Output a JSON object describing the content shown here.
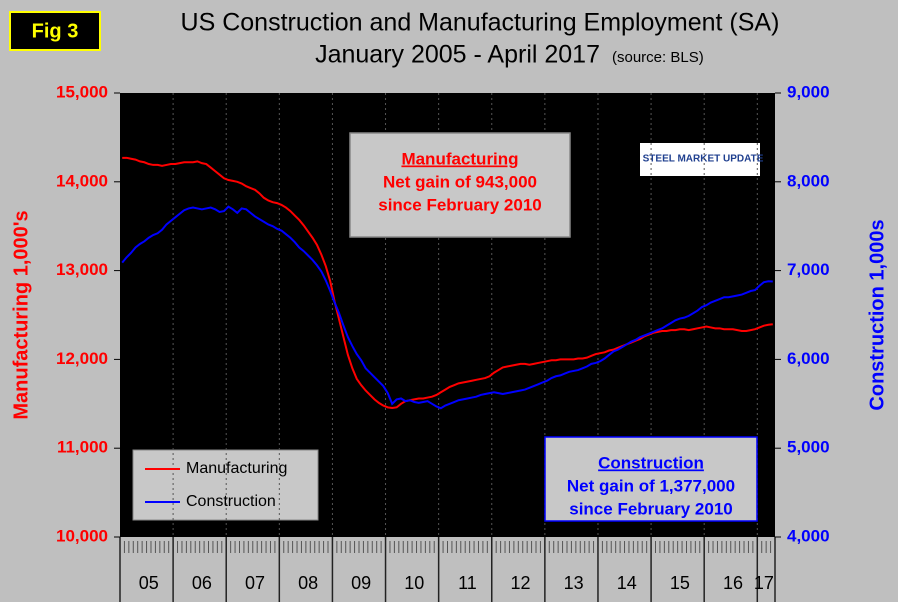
{
  "chart_data": {
    "type": "line",
    "figure_label": "Fig 3",
    "title": "US Construction and Manufacturing Employment (SA)",
    "subtitle": "January 2005 - April 2017",
    "source": "(source: BLS)",
    "logo": "STEEL MARKET UPDATE",
    "y_label": "Manufacturing  1,000's",
    "y2_label": "Construction 1,000s",
    "categories": [
      null,
      null,
      null,
      null,
      null,
      null,
      "05",
      null,
      null,
      null,
      null,
      null,
      null,
      null,
      null,
      null,
      null,
      null,
      "06",
      null,
      null,
      null,
      null,
      null,
      null,
      null,
      null,
      null,
      null,
      null,
      "07",
      null,
      null,
      null,
      null,
      null,
      null,
      null,
      null,
      null,
      null,
      null,
      "08",
      null,
      null,
      null,
      null,
      null,
      null,
      null,
      null,
      null,
      null,
      null,
      "09",
      null,
      null,
      null,
      null,
      null,
      null,
      null,
      null,
      null,
      null,
      null,
      "10",
      null,
      null,
      null,
      null,
      null,
      null,
      null,
      null,
      null,
      null,
      null,
      "11",
      null,
      null,
      null,
      null,
      null,
      null,
      null,
      null,
      null,
      null,
      null,
      "12",
      null,
      null,
      null,
      null,
      null,
      null,
      null,
      null,
      null,
      null,
      null,
      "13",
      null,
      null,
      null,
      null,
      null,
      null,
      null,
      null,
      null,
      null,
      null,
      "14",
      null,
      null,
      null,
      null,
      null,
      null,
      null,
      null,
      null,
      null,
      null,
      "15",
      null,
      null,
      null,
      null,
      null,
      null,
      null,
      null,
      null,
      null,
      null,
      "16",
      null,
      null,
      null,
      null,
      null,
      null,
      "17",
      null,
      null
    ],
    "series": [
      {
        "name": "Manufacturing",
        "color": "#ff0000",
        "values": [
          14270,
          14270,
          14260,
          14250,
          14230,
          14220,
          14200,
          14190,
          14190,
          14180,
          14190,
          14200,
          14200,
          14210,
          14220,
          14220,
          14220,
          14230,
          14210,
          14200,
          14160,
          14120,
          14080,
          14040,
          14020,
          14010,
          14000,
          13980,
          13950,
          13930,
          13910,
          13870,
          13820,
          13790,
          13770,
          13760,
          13740,
          13710,
          13670,
          13620,
          13570,
          13510,
          13440,
          13370,
          13290,
          13180,
          13050,
          12880,
          12650,
          12450,
          12250,
          12050,
          11900,
          11780,
          11710,
          11650,
          11600,
          11550,
          11510,
          11480,
          11460,
          11453,
          11460,
          11500,
          11530,
          11540,
          11550,
          11560,
          11560,
          11570,
          11580,
          11600,
          11630,
          11660,
          11690,
          11710,
          11730,
          11740,
          11750,
          11760,
          11770,
          11780,
          11790,
          11810,
          11850,
          11880,
          11910,
          11920,
          11930,
          11940,
          11950,
          11950,
          11940,
          11950,
          11960,
          11970,
          11980,
          11990,
          11990,
          12000,
          12000,
          12000,
          12000,
          12010,
          12010,
          12020,
          12040,
          12060,
          12070,
          12080,
          12100,
          12110,
          12130,
          12150,
          12170,
          12190,
          12210,
          12230,
          12260,
          12280,
          12300,
          12310,
          12320,
          12320,
          12330,
          12330,
          12340,
          12340,
          12330,
          12340,
          12350,
          12360,
          12370,
          12360,
          12350,
          12350,
          12340,
          12340,
          12340,
          12330,
          12320,
          12320,
          12330,
          12340,
          12360,
          12380,
          12390,
          12396
        ]
      },
      {
        "name": "Construction",
        "color": "#0000ff",
        "axis": "y2",
        "values": [
          7090,
          7150,
          7200,
          7260,
          7300,
          7330,
          7370,
          7400,
          7420,
          7460,
          7520,
          7560,
          7600,
          7640,
          7680,
          7700,
          7710,
          7700,
          7690,
          7700,
          7710,
          7690,
          7660,
          7670,
          7720,
          7690,
          7650,
          7700,
          7690,
          7650,
          7610,
          7580,
          7550,
          7520,
          7500,
          7470,
          7450,
          7410,
          7370,
          7320,
          7260,
          7220,
          7170,
          7120,
          7060,
          6990,
          6890,
          6770,
          6640,
          6520,
          6380,
          6250,
          6150,
          6060,
          5990,
          5900,
          5850,
          5800,
          5750,
          5700,
          5620,
          5500,
          5550,
          5560,
          5530,
          5540,
          5520,
          5510,
          5520,
          5530,
          5500,
          5470,
          5450,
          5480,
          5500,
          5520,
          5540,
          5550,
          5560,
          5570,
          5580,
          5600,
          5610,
          5620,
          5630,
          5620,
          5610,
          5620,
          5630,
          5640,
          5650,
          5660,
          5680,
          5700,
          5720,
          5740,
          5760,
          5790,
          5810,
          5820,
          5840,
          5860,
          5870,
          5880,
          5900,
          5920,
          5950,
          5960,
          5980,
          6010,
          6050,
          6090,
          6110,
          6140,
          6170,
          6200,
          6220,
          6250,
          6270,
          6290,
          6310,
          6330,
          6350,
          6380,
          6410,
          6440,
          6460,
          6470,
          6490,
          6520,
          6550,
          6590,
          6610,
          6640,
          6660,
          6680,
          6700,
          6700,
          6710,
          6720,
          6730,
          6750,
          6770,
          6780,
          6830,
          6870,
          6880,
          6877
        ]
      }
    ],
    "ylim": [
      10000,
      15000
    ],
    "yticks": [
      {
        "value": 10000,
        "label": "10,000"
      },
      {
        "value": 11000,
        "label": "11,000"
      },
      {
        "value": 12000,
        "label": "12,000"
      },
      {
        "value": 13000,
        "label": "13,000"
      },
      {
        "value": 14000,
        "label": "14,000"
      },
      {
        "value": 15000,
        "label": "15,000"
      }
    ],
    "y2lim": [
      4000,
      9000
    ],
    "y2ticks": [
      {
        "value": 4000,
        "label": "4,000"
      },
      {
        "value": 5000,
        "label": "5,000"
      },
      {
        "value": 6000,
        "label": "6,000"
      },
      {
        "value": 7000,
        "label": "7,000"
      },
      {
        "value": 8000,
        "label": "8,000"
      },
      {
        "value": 9000,
        "label": "9,000"
      }
    ],
    "annotations": [
      {
        "title": "Manufacturing",
        "lines": [
          "Net gain of 943,000",
          "since February 2010"
        ],
        "color": "#ff0000"
      },
      {
        "title": "Construction",
        "lines": [
          "Net gain of 1,377,000",
          "since February 2010"
        ],
        "color": "#0000ff"
      }
    ]
  }
}
